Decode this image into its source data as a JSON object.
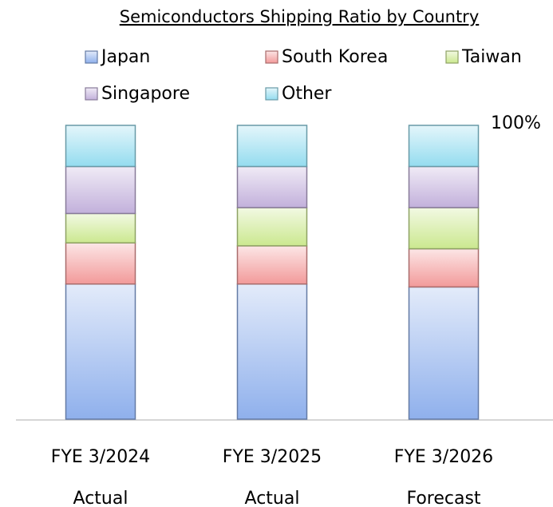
{
  "chart_data": {
    "type": "stacked_bar",
    "title": "Semiconductors Shipping Ratio by Country",
    "categories": [
      [
        "FYE 3/2024",
        "Actual"
      ],
      [
        "FYE 3/2025",
        "Actual"
      ],
      [
        "FYE 3/2026",
        "Forecast"
      ]
    ],
    "series": [
      {
        "name": "Japan",
        "color": "#8fb0ec",
        "values": [
          46,
          46,
          45
        ]
      },
      {
        "name": "South Korea",
        "color": "#f29a9a",
        "values": [
          14,
          13,
          13
        ]
      },
      {
        "name": "Taiwan",
        "color": "#cbe88f",
        "values": [
          10,
          13,
          14
        ]
      },
      {
        "name": "Singapore",
        "color": "#c2b0db",
        "values": [
          16,
          14,
          14
        ]
      },
      {
        "name": "Other",
        "color": "#94dcef",
        "values": [
          14,
          14,
          14
        ]
      }
    ],
    "ylim": [
      0,
      100
    ],
    "yticks": [
      {
        "value": 100,
        "label": "100%"
      }
    ]
  }
}
